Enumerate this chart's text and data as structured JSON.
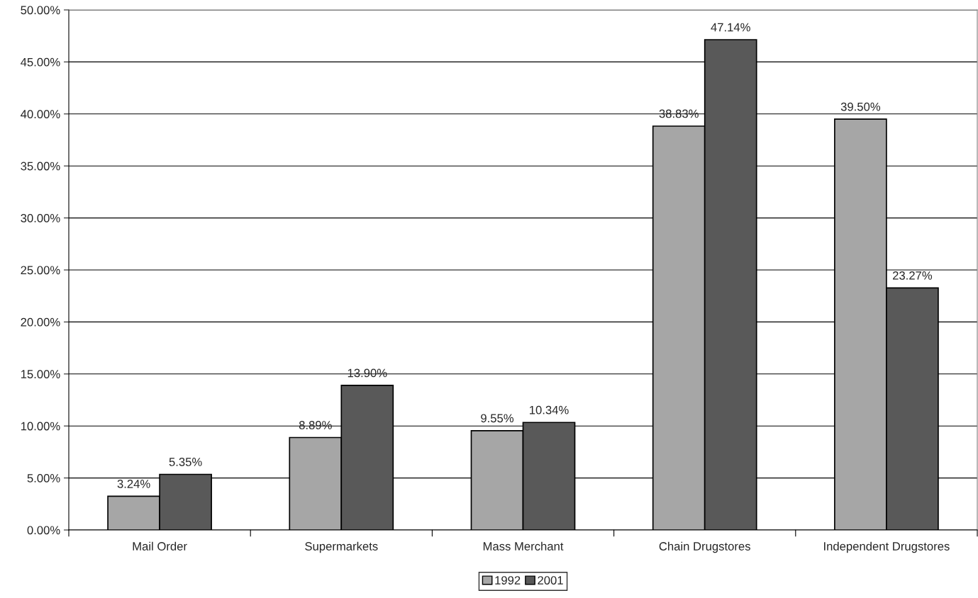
{
  "chart_data": {
    "type": "bar",
    "categories": [
      "Mail Order",
      "Supermarkets",
      "Mass Merchant",
      "Chain Drugstores",
      "Independent Drugstores"
    ],
    "series": [
      {
        "name": "1992",
        "color": "#a6a6a6",
        "values": [
          3.24,
          8.89,
          9.55,
          38.83,
          39.5
        ],
        "value_labels": [
          "3.24%",
          "8.89%",
          "9.55%",
          "38.83%",
          "39.50%"
        ]
      },
      {
        "name": "2001",
        "color": "#595959",
        "values": [
          5.35,
          13.9,
          10.34,
          47.14,
          23.27
        ],
        "value_labels": [
          "5.35%",
          "13.90%",
          "10.34%",
          "47.14%",
          "23.27%"
        ]
      }
    ],
    "ylim": [
      0,
      50
    ],
    "yticks": [
      {
        "value": 0,
        "label": "0.00%"
      },
      {
        "value": 5,
        "label": "5.00%"
      },
      {
        "value": 10,
        "label": "10.00%"
      },
      {
        "value": 15,
        "label": "15.00%"
      },
      {
        "value": 20,
        "label": "20.00%"
      },
      {
        "value": 25,
        "label": "25.00%"
      },
      {
        "value": 30,
        "label": "30.00%"
      },
      {
        "value": 35,
        "label": "35.00%"
      },
      {
        "value": 40,
        "label": "40.00%"
      },
      {
        "value": 45,
        "label": "45.00%"
      },
      {
        "value": 50,
        "label": "50.00%"
      }
    ],
    "grid": "y",
    "legend": "bottom"
  }
}
